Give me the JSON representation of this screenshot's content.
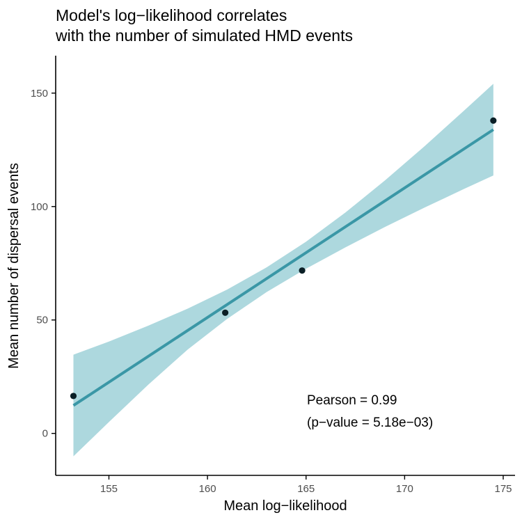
{
  "chart_data": {
    "type": "scatter",
    "title_lines": [
      "Model's log−likelihood correlates",
      "with the number of simulated HMD events"
    ],
    "xlabel": "Mean log−likelihood",
    "ylabel": "Mean number of dispersal events",
    "xlim": [
      152.3,
      175.6
    ],
    "ylim": [
      -18.5,
      166.5
    ],
    "x_ticks": [
      155,
      160,
      165,
      170,
      175
    ],
    "y_ticks": [
      0,
      50,
      100,
      150
    ],
    "points": [
      {
        "x": 153.2,
        "y": 16.5
      },
      {
        "x": 160.9,
        "y": 53.2
      },
      {
        "x": 164.8,
        "y": 71.8
      },
      {
        "x": 174.5,
        "y": 137.9
      }
    ],
    "fit": {
      "x": [
        153.2,
        174.5
      ],
      "y": [
        12.3,
        133.9
      ]
    },
    "confidence_band": {
      "x": [
        153.2,
        155,
        157,
        159,
        161,
        163,
        165,
        167,
        169,
        171,
        173,
        174.5
      ],
      "upper": [
        34.7,
        40.5,
        47.5,
        55.0,
        63.4,
        73.2,
        84.5,
        97.4,
        111.5,
        126.5,
        142.2,
        154.1
      ],
      "lower": [
        -10.1,
        5.0,
        21.5,
        37.0,
        50.5,
        62.3,
        72.6,
        82.0,
        91.0,
        99.5,
        107.7,
        113.7
      ]
    },
    "annotation": {
      "line1": "Pearson = 0.99",
      "line2": "(p−value = 5.18e−03)"
    },
    "colors": {
      "points": "#0a1f26",
      "line": "#3a97a6",
      "band": "#add8de",
      "axis": "#000000",
      "tick_label": "#4d4d4d"
    },
    "grid": false,
    "legend": "none"
  }
}
